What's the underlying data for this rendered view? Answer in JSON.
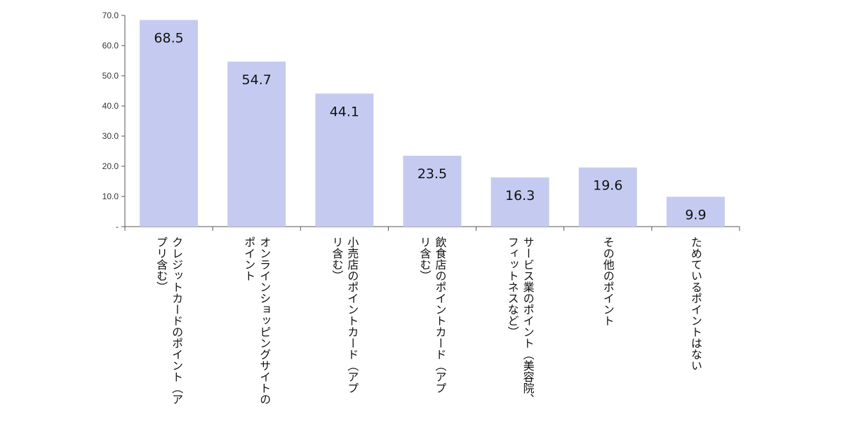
{
  "chart_data": {
    "type": "bar",
    "categories": [
      [
        "クレジットカードのポイント（ア",
        "プリ含む）"
      ],
      [
        "オンラインショッピングサイトの",
        "ポイント"
      ],
      [
        "小売店のポイントカード（アプ",
        "リ含む）"
      ],
      [
        "飲食店のポイントカード（アプ",
        "リ含む）"
      ],
      [
        "サービス業のポイント（美容院、",
        "フィットネスなど）"
      ],
      [
        "その他のポイント"
      ],
      [
        "ためているポイントはない"
      ]
    ],
    "values": [
      68.5,
      54.7,
      44.1,
      23.5,
      16.3,
      19.6,
      9.9
    ],
    "value_labels": [
      "68.5",
      "54.7",
      "44.1",
      "23.5",
      "16.3",
      "19.6",
      "9.9"
    ],
    "y_ticks": [
      0,
      10,
      20,
      30,
      40,
      50,
      60,
      70
    ],
    "y_tick_labels": [
      "-",
      "10.0",
      "20.0",
      "30.0",
      "40.0",
      "50.0",
      "60.0",
      "70.0"
    ],
    "ylim": [
      0,
      70
    ],
    "title": "",
    "xlabel": "",
    "ylabel": "",
    "grid": false,
    "legend": "none",
    "bar_color": "#c5cbf0",
    "axis_color": "#555555"
  }
}
